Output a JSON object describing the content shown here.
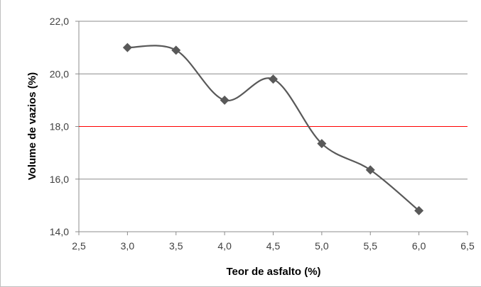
{
  "chart_data": {
    "type": "line",
    "title": "",
    "xlabel": "Teor de asfalto (%)",
    "ylabel": "Volume de vazios (%)",
    "xlim": [
      2.5,
      6.5
    ],
    "ylim": [
      14.0,
      22.0
    ],
    "x_ticks": [
      "2,5",
      "3,0",
      "3,5",
      "4,0",
      "4,5",
      "5,0",
      "5,5",
      "6,0",
      "6,5"
    ],
    "y_ticks": [
      "14,0",
      "16,0",
      "18,0",
      "20,0",
      "22,0"
    ],
    "grid": "horizontal",
    "series": [
      {
        "x": [
          3.0,
          3.5,
          4.0,
          4.5,
          5.0,
          5.5,
          6.0
        ],
        "y": [
          21.0,
          20.9,
          19.0,
          19.8,
          17.35,
          16.35,
          14.8
        ],
        "color": "#595959",
        "marker": "diamond",
        "smooth": true
      }
    ],
    "reference_lines": [
      {
        "y": 18.0,
        "color": "#ff0000"
      }
    ]
  }
}
